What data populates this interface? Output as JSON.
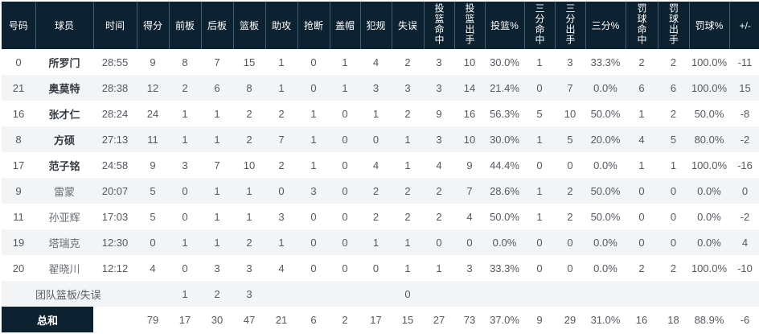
{
  "colors": {
    "header_bg": "#0d2231",
    "header_divider": "#41606f",
    "row_alt": "#f3f4f5",
    "header_text": "#ffffff",
    "body_text": "#54595f"
  },
  "table": {
    "columns": [
      {
        "key": "number",
        "label": "号码",
        "vertical": false
      },
      {
        "key": "player",
        "label": "球员",
        "vertical": false
      },
      {
        "key": "time",
        "label": "时间",
        "vertical": false
      },
      {
        "key": "points",
        "label": "得分",
        "vertical": false
      },
      {
        "key": "oreb",
        "label": "前板",
        "vertical": false
      },
      {
        "key": "dreb",
        "label": "后板",
        "vertical": false
      },
      {
        "key": "reb",
        "label": "篮板",
        "vertical": false
      },
      {
        "key": "ast",
        "label": "助攻",
        "vertical": false
      },
      {
        "key": "stl",
        "label": "抢断",
        "vertical": false
      },
      {
        "key": "blk",
        "label": "盖帽",
        "vertical": false
      },
      {
        "key": "pf",
        "label": "犯规",
        "vertical": false
      },
      {
        "key": "to",
        "label": "失误",
        "vertical": false
      },
      {
        "key": "fgm",
        "label": "投篮命中",
        "vertical": true
      },
      {
        "key": "fga",
        "label": "投篮出手",
        "vertical": true
      },
      {
        "key": "fgp",
        "label": "投篮%",
        "vertical": false
      },
      {
        "key": "tpm",
        "label": "三分命中",
        "vertical": true
      },
      {
        "key": "tpa",
        "label": "三分出手",
        "vertical": true
      },
      {
        "key": "tpp",
        "label": "三分%",
        "vertical": false
      },
      {
        "key": "ftm",
        "label": "罚球命中",
        "vertical": true
      },
      {
        "key": "fta",
        "label": "罚球出手",
        "vertical": true
      },
      {
        "key": "ftp",
        "label": "罚球%",
        "vertical": false
      },
      {
        "key": "pm",
        "label": "+/-",
        "vertical": false
      }
    ],
    "players": [
      {
        "number": "0",
        "player": "所罗门",
        "starter": true,
        "time": "28:55",
        "points": "9",
        "oreb": "8",
        "dreb": "7",
        "reb": "15",
        "ast": "1",
        "stl": "0",
        "blk": "1",
        "pf": "4",
        "to": "2",
        "fgm": "3",
        "fga": "10",
        "fgp": "30.0%",
        "tpm": "1",
        "tpa": "3",
        "tpp": "33.3%",
        "ftm": "2",
        "fta": "2",
        "ftp": "100.0%",
        "pm": "-11"
      },
      {
        "number": "21",
        "player": "奥莫特",
        "starter": true,
        "time": "28:38",
        "points": "12",
        "oreb": "2",
        "dreb": "6",
        "reb": "8",
        "ast": "1",
        "stl": "0",
        "blk": "1",
        "pf": "3",
        "to": "3",
        "fgm": "3",
        "fga": "14",
        "fgp": "21.4%",
        "tpm": "0",
        "tpa": "7",
        "tpp": "0.0%",
        "ftm": "6",
        "fta": "6",
        "ftp": "100.0%",
        "pm": "15"
      },
      {
        "number": "16",
        "player": "张才仁",
        "starter": true,
        "time": "28:24",
        "points": "24",
        "oreb": "1",
        "dreb": "1",
        "reb": "2",
        "ast": "2",
        "stl": "1",
        "blk": "0",
        "pf": "1",
        "to": "2",
        "fgm": "9",
        "fga": "16",
        "fgp": "56.3%",
        "tpm": "5",
        "tpa": "10",
        "tpp": "50.0%",
        "ftm": "1",
        "fta": "2",
        "ftp": "50.0%",
        "pm": "-8"
      },
      {
        "number": "8",
        "player": "方硕",
        "starter": true,
        "time": "27:13",
        "points": "11",
        "oreb": "1",
        "dreb": "1",
        "reb": "2",
        "ast": "7",
        "stl": "1",
        "blk": "0",
        "pf": "0",
        "to": "1",
        "fgm": "3",
        "fga": "10",
        "fgp": "30.0%",
        "tpm": "1",
        "tpa": "5",
        "tpp": "20.0%",
        "ftm": "4",
        "fta": "5",
        "ftp": "80.0%",
        "pm": "-2"
      },
      {
        "number": "17",
        "player": "范子铭",
        "starter": true,
        "time": "24:58",
        "points": "9",
        "oreb": "3",
        "dreb": "7",
        "reb": "10",
        "ast": "2",
        "stl": "1",
        "blk": "0",
        "pf": "4",
        "to": "1",
        "fgm": "4",
        "fga": "9",
        "fgp": "44.4%",
        "tpm": "0",
        "tpa": "0",
        "tpp": "0.0%",
        "ftm": "1",
        "fta": "1",
        "ftp": "100.0%",
        "pm": "-16"
      },
      {
        "number": "9",
        "player": "雷蒙",
        "starter": false,
        "time": "20:07",
        "points": "5",
        "oreb": "0",
        "dreb": "1",
        "reb": "1",
        "ast": "0",
        "stl": "3",
        "blk": "0",
        "pf": "2",
        "to": "2",
        "fgm": "2",
        "fga": "7",
        "fgp": "28.6%",
        "tpm": "1",
        "tpa": "2",
        "tpp": "50.0%",
        "ftm": "0",
        "fta": "0",
        "ftp": "0.0%",
        "pm": "0"
      },
      {
        "number": "11",
        "player": "孙亚辉",
        "starter": false,
        "time": "17:03",
        "points": "5",
        "oreb": "0",
        "dreb": "1",
        "reb": "1",
        "ast": "3",
        "stl": "0",
        "blk": "0",
        "pf": "2",
        "to": "2",
        "fgm": "2",
        "fga": "4",
        "fgp": "50.0%",
        "tpm": "1",
        "tpa": "2",
        "tpp": "50.0%",
        "ftm": "0",
        "fta": "0",
        "ftp": "0.0%",
        "pm": "-2"
      },
      {
        "number": "19",
        "player": "塔瑞克",
        "starter": false,
        "time": "12:30",
        "points": "0",
        "oreb": "1",
        "dreb": "1",
        "reb": "2",
        "ast": "1",
        "stl": "0",
        "blk": "0",
        "pf": "1",
        "to": "1",
        "fgm": "0",
        "fga": "0",
        "fgp": "0.0%",
        "tpm": "0",
        "tpa": "0",
        "tpp": "0.0%",
        "ftm": "0",
        "fta": "0",
        "ftp": "0.0%",
        "pm": "4"
      },
      {
        "number": "20",
        "player": "翟晓川",
        "starter": false,
        "time": "12:12",
        "points": "4",
        "oreb": "0",
        "dreb": "3",
        "reb": "3",
        "ast": "4",
        "stl": "0",
        "blk": "0",
        "pf": "0",
        "to": "1",
        "fgm": "1",
        "fga": "3",
        "fgp": "33.3%",
        "tpm": "0",
        "tpa": "0",
        "tpp": "0.0%",
        "ftm": "2",
        "fta": "2",
        "ftp": "100.0%",
        "pm": "-10"
      }
    ],
    "team_row": {
      "player": "团队篮板/失误",
      "oreb": "1",
      "dreb": "2",
      "reb": "3",
      "to": "0"
    },
    "total_row": {
      "label": "总和",
      "time": "",
      "points": "79",
      "oreb": "17",
      "dreb": "30",
      "reb": "47",
      "ast": "21",
      "stl": "6",
      "blk": "2",
      "pf": "17",
      "to": "15",
      "fgm": "27",
      "fga": "73",
      "fgp": "37.0%",
      "tpm": "9",
      "tpa": "29",
      "tpp": "31.0%",
      "ftm": "16",
      "fta": "18",
      "ftp": "88.9%",
      "pm": "-6"
    }
  }
}
